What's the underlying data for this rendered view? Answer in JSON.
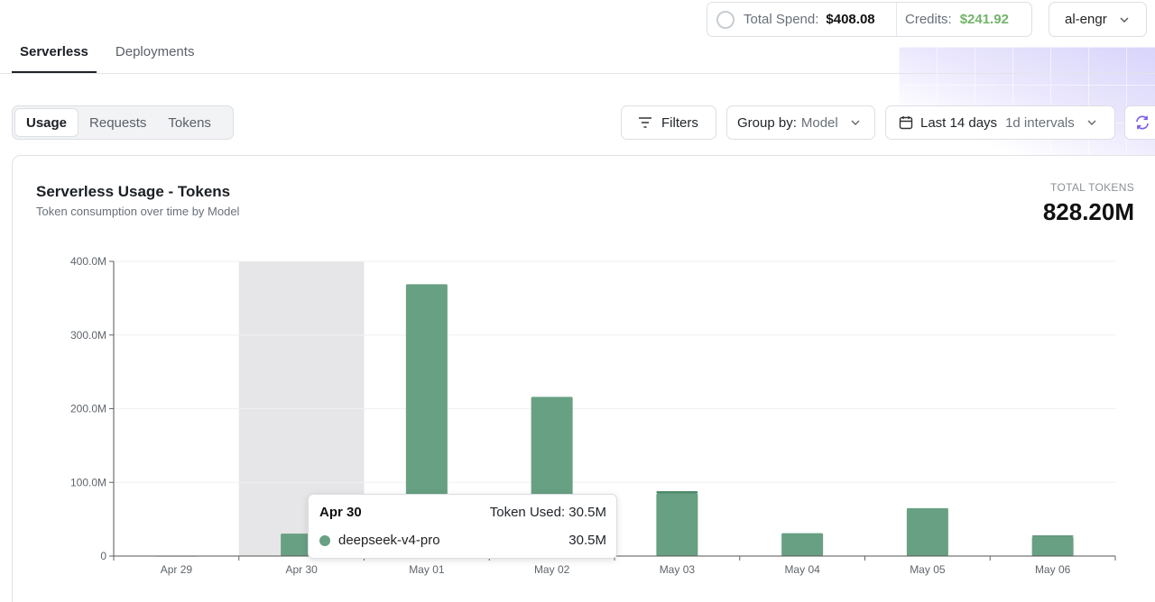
{
  "header": {
    "total_spend_label": "Total Spend:",
    "total_spend_value": "$408.08",
    "credits_label": "Credits:",
    "credits_value": "$241.92",
    "org_name": "al-engr"
  },
  "tabs": [
    {
      "label": "Serverless",
      "active": true
    },
    {
      "label": "Deployments",
      "active": false
    }
  ],
  "metric_toggle": [
    {
      "label": "Usage",
      "active": true
    },
    {
      "label": "Requests",
      "active": false
    },
    {
      "label": "Tokens",
      "active": false
    }
  ],
  "controls": {
    "filters_label": "Filters",
    "group_by_label": "Group by:",
    "group_by_value": "Model",
    "range_label": "Last 14 days",
    "interval_label": "1d intervals"
  },
  "card": {
    "title": "Serverless Usage - Tokens",
    "subtitle": "Token consumption over time by Model",
    "total_label": "TOTAL TOKENS",
    "total_value": "828.20M"
  },
  "tooltip": {
    "date": "Apr 30",
    "total_text": "Token Used: 30.5M",
    "model": "deepseek-v4-pro",
    "model_value": "30.5M",
    "dot_color": "#68a083"
  },
  "chart_data": {
    "type": "bar",
    "categories": [
      "Apr 29",
      "Apr 30",
      "May 01",
      "May 02",
      "May 03",
      "May 04",
      "May 05",
      "May 06"
    ],
    "series": [
      {
        "name": "deepseek-v4-pro",
        "values": [
          0.5,
          30.5,
          369,
          216,
          85,
          31,
          65,
          26
        ],
        "color": "#68a083"
      },
      {
        "values": [
          0,
          0,
          0,
          0,
          3,
          0,
          0,
          2
        ],
        "color": "#4f8a6c"
      }
    ],
    "y_ticks": [
      "0",
      "100.0M",
      "200.0M",
      "300.0M",
      "400.0M"
    ],
    "ylim": [
      0,
      400
    ],
    "highlighted_category": "Apr 30",
    "grid": true
  }
}
